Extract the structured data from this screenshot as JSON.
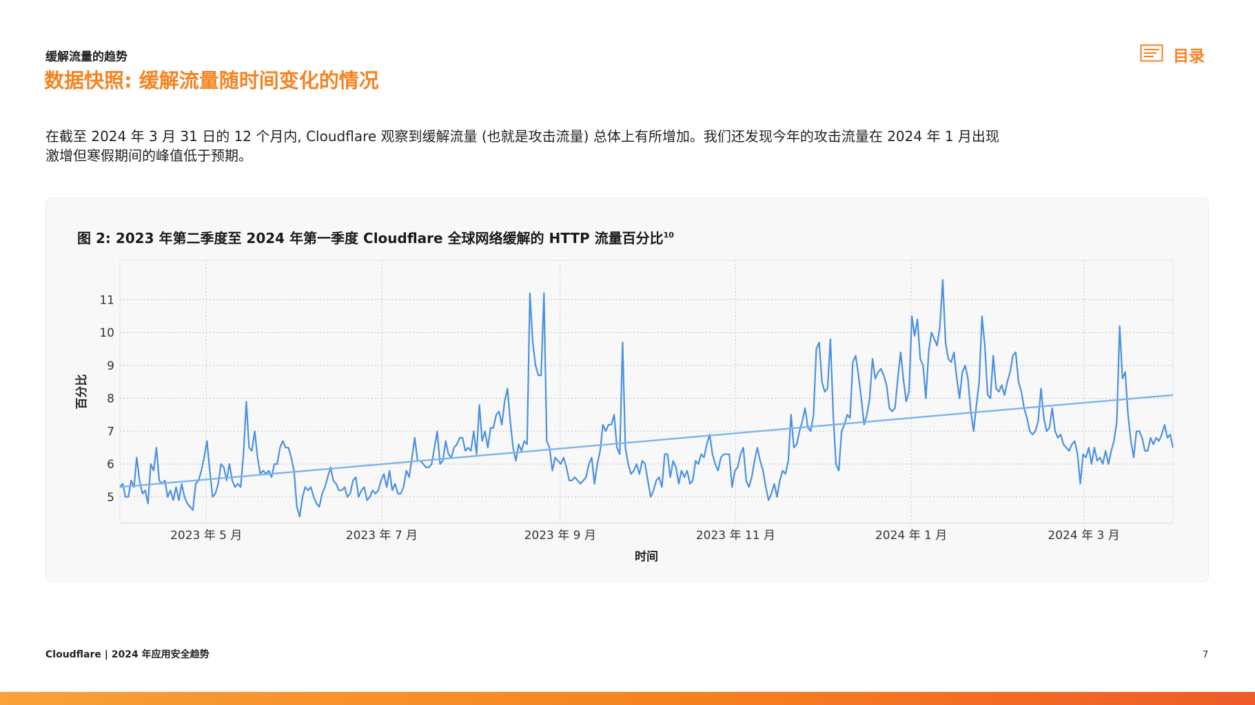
{
  "header": {
    "kicker": "缓解流量的趋势",
    "title": "数据快照: 缓解流量随时间变化的情况",
    "toc_label": "目录"
  },
  "intro": {
    "line1": "在截至 2024 年 3 月 31 日的 12 个月内, Cloudflare 观察到缓解流量 (也就是攻击流量) 总体上有所增加。我们还发现今年的攻击流量在 2024 年 1 月出现",
    "line2": "激增但寒假期间的峰值低于预期。"
  },
  "figure": {
    "caption": "图 2: 2023 年第二季度至 2024 年第一季度 Cloudflare 全球网络缓解的 HTTP 流量百分比",
    "footnote_ref": "10"
  },
  "chart_data": {
    "type": "line",
    "xlabel": "时间",
    "ylabel": "百分比",
    "x_ticks": [
      {
        "label": "2023 年 5 月",
        "day": 30
      },
      {
        "label": "2023 年 7 月",
        "day": 91
      },
      {
        "label": "2023 年 9 月",
        "day": 153
      },
      {
        "label": "2023 年 11 月",
        "day": 214
      },
      {
        "label": "2024 年 1 月",
        "day": 275
      },
      {
        "label": "2024 年 3 月",
        "day": 335
      }
    ],
    "y_ticks": [
      5,
      6,
      7,
      8,
      9,
      10,
      11
    ],
    "x_range_days": [
      0,
      366
    ],
    "ylim": [
      4.2,
      12.2
    ],
    "grid": true,
    "series": [
      {
        "name": "",
        "color": "#4a90e2",
        "values": [
          5.3,
          5.4,
          5.0,
          5.0,
          5.5,
          5.3,
          6.2,
          5.5,
          5.1,
          5.2,
          4.8,
          6.0,
          5.8,
          6.5,
          5.5,
          5.4,
          5.5,
          5.0,
          5.2,
          4.9,
          5.3,
          4.9,
          5.4,
          5.0,
          4.8,
          4.7,
          4.6,
          5.4,
          5.5,
          5.8,
          6.2,
          6.7,
          5.8,
          5.0,
          5.1,
          5.4,
          6.0,
          5.9,
          5.5,
          6.0,
          5.5,
          5.3,
          5.4,
          5.3,
          6.3,
          7.9,
          6.5,
          6.4,
          7.0,
          6.2,
          5.7,
          5.8,
          5.7,
          5.8,
          5.6,
          6.0,
          6.0,
          6.5,
          6.7,
          6.5,
          6.5,
          6.2,
          5.8,
          4.7,
          4.4,
          5.0,
          5.3,
          5.2,
          5.3,
          5.0,
          4.8,
          4.7,
          5.1,
          5.3,
          5.6,
          5.9,
          5.5,
          5.4,
          5.2,
          5.2,
          5.3,
          5.0,
          5.1,
          5.5,
          5.6,
          5.0,
          5.2,
          5.3,
          4.9,
          5.0,
          5.2,
          5.1,
          5.2,
          5.5,
          5.7,
          5.3,
          5.8,
          5.2,
          5.4,
          5.1,
          5.1,
          5.3,
          5.8,
          5.6,
          6.2,
          6.8,
          6.1,
          6.1,
          6.0,
          5.9,
          5.9,
          6.0,
          6.5,
          7.0,
          6.0,
          6.1,
          6.7,
          6.3,
          6.2,
          6.5,
          6.6,
          6.8,
          6.8,
          6.4,
          6.5,
          6.4,
          7.0,
          6.3,
          7.8,
          6.7,
          7.0,
          6.5,
          7.1,
          7.1,
          7.5,
          7.6,
          7.2,
          7.9,
          8.3,
          7.3,
          6.5,
          6.1,
          6.6,
          6.4,
          6.7,
          6.6,
          11.2,
          9.7,
          9.0,
          8.7,
          8.7,
          11.2,
          6.7,
          6.5,
          5.8,
          6.2,
          6.1,
          6.0,
          6.2,
          5.9,
          5.5,
          5.5,
          5.6,
          5.5,
          5.4,
          5.5,
          5.6,
          6.0,
          6.2,
          5.4,
          6.0,
          6.4,
          7.2,
          7.0,
          7.2,
          7.2,
          7.5,
          6.5,
          6.3,
          9.7,
          6.5,
          6.0,
          5.7,
          5.8,
          6.0,
          5.7,
          6.1,
          6.0,
          5.5,
          5.0,
          5.2,
          5.5,
          5.6,
          5.3,
          6.3,
          6.3,
          5.6,
          6.1,
          5.9,
          5.4,
          5.8,
          5.6,
          5.8,
          5.4,
          5.5,
          6.1,
          6.0,
          6.3,
          6.2,
          6.6,
          6.9,
          6.3,
          6.0,
          5.8,
          6.2,
          6.3,
          6.3,
          6.3,
          5.3,
          5.8,
          5.9,
          6.3,
          6.5,
          5.5,
          5.3,
          5.6,
          6.1,
          6.5,
          6.1,
          5.8,
          5.3,
          4.9,
          5.1,
          5.4,
          5.0,
          5.5,
          5.8,
          5.7,
          6.1,
          7.5,
          6.5,
          6.6,
          7.0,
          7.3,
          7.7,
          7.1,
          7.0,
          7.5,
          9.5,
          9.7,
          8.5,
          8.2,
          8.3,
          9.8,
          7.5,
          6.0,
          5.8,
          7.0,
          7.2,
          7.5,
          7.4,
          9.1,
          9.3,
          8.7,
          8.0,
          7.2,
          7.5,
          8.0,
          9.2,
          8.6,
          8.8,
          8.9,
          8.7,
          8.4,
          7.7,
          7.6,
          7.7,
          8.6,
          9.4,
          8.6,
          7.9,
          8.2,
          10.5,
          9.9,
          10.4,
          9.2,
          9.0,
          8.0,
          9.4,
          10.0,
          9.8,
          9.6,
          10.2,
          11.6,
          9.7,
          9.2,
          9.1,
          9.4,
          8.6,
          8.0,
          8.8,
          9.0,
          8.6,
          7.6,
          7.0,
          7.8,
          8.5,
          10.5,
          9.6,
          8.1,
          8.0,
          9.3,
          8.3,
          8.2,
          8.4,
          8.1,
          8.5,
          8.8,
          9.3,
          9.4,
          8.5,
          8.2,
          7.7,
          7.4,
          7.0,
          6.9,
          7.0,
          7.3,
          8.3,
          7.4,
          7.0,
          7.1,
          7.7,
          7.0,
          6.8,
          6.9,
          6.6,
          6.5,
          6.4,
          6.6,
          6.7,
          6.3,
          5.4,
          6.3,
          6.2,
          6.5,
          6.0,
          6.5,
          6.1,
          6.2,
          6.0,
          6.4,
          6.0,
          6.4,
          6.7,
          7.3,
          10.2,
          8.6,
          8.8,
          7.5,
          6.7,
          6.2,
          7.0,
          7.0,
          6.8,
          6.4,
          6.4,
          6.8,
          6.6,
          6.8,
          6.7,
          6.9,
          7.2,
          6.8,
          6.9,
          6.5
        ]
      },
      {
        "name": "",
        "type": "trend",
        "color": "#7eb3ea",
        "values": [
          5.3,
          8.1
        ]
      }
    ]
  }
}
